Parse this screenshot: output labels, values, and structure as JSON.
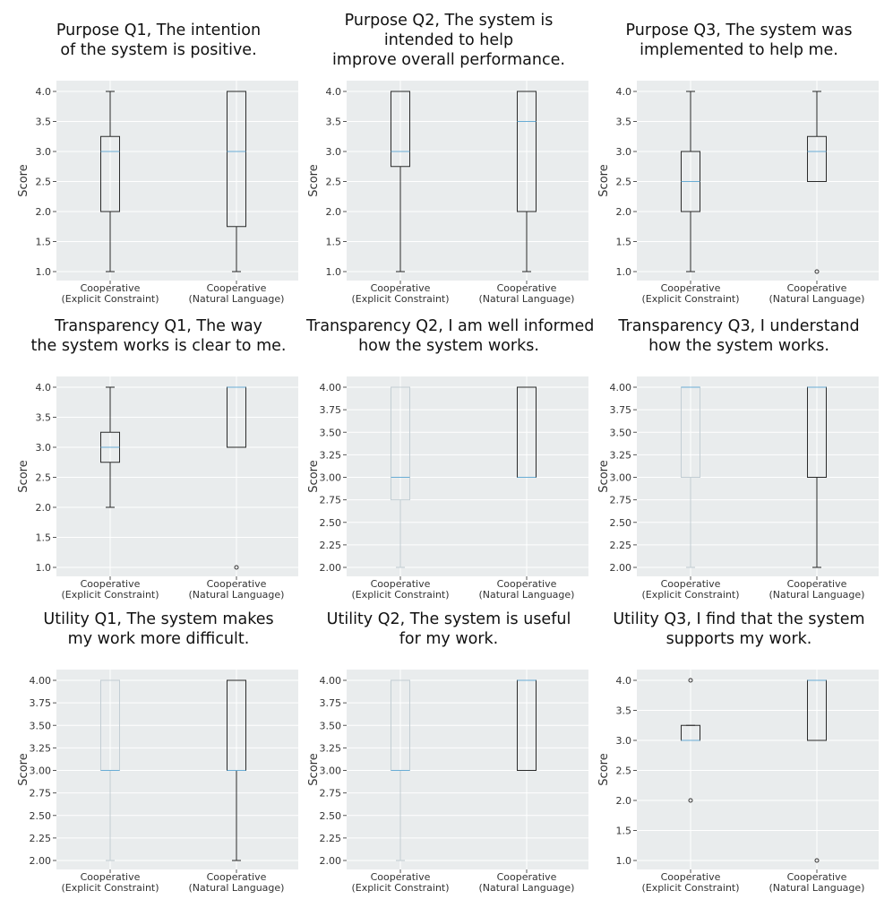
{
  "colors": {
    "background": "#ffffff",
    "plot_bg": "#e9eced",
    "grid": "#ffffff",
    "box": "#2b2b2b",
    "box_light": "#c3ced4",
    "median": "#6aaed6",
    "text": "#333333"
  },
  "chart_data": [
    {
      "type": "box",
      "title": "Purpose Q1, The intention\nof the system is positive.",
      "ylabel": "Score",
      "ylim": [
        1.0,
        4.0
      ],
      "yticks": [
        "1.0",
        "1.5",
        "2.0",
        "2.5",
        "3.0",
        "3.5",
        "4.0"
      ],
      "categories": [
        {
          "line1": "Cooperative",
          "line2": "(Explicit Constraint)"
        },
        {
          "line1": "Cooperative",
          "line2": "(Natural Language)"
        }
      ],
      "boxes": [
        {
          "whislo": 1.0,
          "q1": 2.0,
          "med": 3.0,
          "q3": 3.25,
          "whishi": 4.0,
          "fliers": [],
          "style": "dark"
        },
        {
          "whislo": 1.0,
          "q1": 1.75,
          "med": 3.0,
          "q3": 4.0,
          "whishi": 4.0,
          "fliers": [],
          "style": "dark"
        }
      ]
    },
    {
      "type": "box",
      "title": "Purpose Q2, The system is\nintended to help\nimprove overall performance.",
      "ylabel": "Score",
      "ylim": [
        1.0,
        4.0
      ],
      "yticks": [
        "1.0",
        "1.5",
        "2.0",
        "2.5",
        "3.0",
        "3.5",
        "4.0"
      ],
      "categories": [
        {
          "line1": "Cooperative",
          "line2": "(Explicit Constraint)"
        },
        {
          "line1": "Cooperative",
          "line2": "(Natural Language)"
        }
      ],
      "boxes": [
        {
          "whislo": 1.0,
          "q1": 2.75,
          "med": 3.0,
          "q3": 4.0,
          "whishi": 4.0,
          "fliers": [],
          "style": "dark"
        },
        {
          "whislo": 1.0,
          "q1": 2.0,
          "med": 3.5,
          "q3": 4.0,
          "whishi": 4.0,
          "fliers": [],
          "style": "dark"
        }
      ]
    },
    {
      "type": "box",
      "title": "Purpose Q3, The system was\nimplemented to help me.",
      "ylabel": "Score",
      "ylim": [
        1.0,
        4.0
      ],
      "yticks": [
        "1.0",
        "1.5",
        "2.0",
        "2.5",
        "3.0",
        "3.5",
        "4.0"
      ],
      "categories": [
        {
          "line1": "Cooperative",
          "line2": "(Explicit Constraint)"
        },
        {
          "line1": "Cooperative",
          "line2": "(Natural Language)"
        }
      ],
      "boxes": [
        {
          "whislo": 1.0,
          "q1": 2.0,
          "med": 2.5,
          "q3": 3.0,
          "whishi": 4.0,
          "fliers": [],
          "style": "dark"
        },
        {
          "whislo": 2.5,
          "q1": 2.5,
          "med": 3.0,
          "q3": 3.25,
          "whishi": 4.0,
          "fliers": [
            1.0
          ],
          "style": "dark"
        }
      ]
    },
    {
      "type": "box",
      "title": "Transparency Q1, The way\nthe system works is clear to me.",
      "ylabel": "Score",
      "ylim": [
        1.0,
        4.0
      ],
      "yticks": [
        "1.0",
        "1.5",
        "2.0",
        "2.5",
        "3.0",
        "3.5",
        "4.0"
      ],
      "categories": [
        {
          "line1": "Cooperative",
          "line2": "(Explicit Constraint)"
        },
        {
          "line1": "Cooperative",
          "line2": "(Natural Language)"
        }
      ],
      "boxes": [
        {
          "whislo": 2.0,
          "q1": 2.75,
          "med": 3.0,
          "q3": 3.25,
          "whishi": 4.0,
          "fliers": [],
          "style": "dark"
        },
        {
          "whislo": 3.0,
          "q1": 3.0,
          "med": 4.0,
          "q3": 4.0,
          "whishi": 4.0,
          "fliers": [
            1.0
          ],
          "style": "dark"
        }
      ]
    },
    {
      "type": "box",
      "title": "Transparency Q2, I am well informed\nhow the system works.",
      "ylabel": "Score",
      "ylim": [
        2.0,
        4.0
      ],
      "yticks": [
        "2.00",
        "2.25",
        "2.50",
        "2.75",
        "3.00",
        "3.25",
        "3.50",
        "3.75",
        "4.00"
      ],
      "categories": [
        {
          "line1": "Cooperative",
          "line2": "(Explicit Constraint)"
        },
        {
          "line1": "Cooperative",
          "line2": "(Natural Language)"
        }
      ],
      "boxes": [
        {
          "whislo": 2.0,
          "q1": 2.75,
          "med": 3.0,
          "q3": 4.0,
          "whishi": 4.0,
          "fliers": [],
          "style": "light"
        },
        {
          "whislo": 3.0,
          "q1": 3.0,
          "med": 3.0,
          "q3": 4.0,
          "whishi": 4.0,
          "fliers": [],
          "style": "dark"
        }
      ]
    },
    {
      "type": "box",
      "title": "Transparency Q3, I understand\nhow the system works.",
      "ylabel": "Score",
      "ylim": [
        2.0,
        4.0
      ],
      "yticks": [
        "2.00",
        "2.25",
        "2.50",
        "2.75",
        "3.00",
        "3.25",
        "3.50",
        "3.75",
        "4.00"
      ],
      "categories": [
        {
          "line1": "Cooperative",
          "line2": "(Explicit Constraint)"
        },
        {
          "line1": "Cooperative",
          "line2": "(Natural Language)"
        }
      ],
      "boxes": [
        {
          "whislo": 2.0,
          "q1": 3.0,
          "med": 4.0,
          "q3": 4.0,
          "whishi": 4.0,
          "fliers": [],
          "style": "light"
        },
        {
          "whislo": 2.0,
          "q1": 3.0,
          "med": 4.0,
          "q3": 4.0,
          "whishi": 4.0,
          "fliers": [],
          "style": "dark"
        }
      ]
    },
    {
      "type": "box",
      "title": "Utility Q1, The system makes\nmy work more difficult.",
      "ylabel": "Score",
      "ylim": [
        2.0,
        4.0
      ],
      "yticks": [
        "2.00",
        "2.25",
        "2.50",
        "2.75",
        "3.00",
        "3.25",
        "3.50",
        "3.75",
        "4.00"
      ],
      "categories": [
        {
          "line1": "Cooperative",
          "line2": "(Explicit Constraint)"
        },
        {
          "line1": "Cooperative",
          "line2": "(Natural Language)"
        }
      ],
      "boxes": [
        {
          "whislo": 2.0,
          "q1": 3.0,
          "med": 3.0,
          "q3": 4.0,
          "whishi": 4.0,
          "fliers": [],
          "style": "light"
        },
        {
          "whislo": 2.0,
          "q1": 3.0,
          "med": 3.0,
          "q3": 4.0,
          "whishi": 4.0,
          "fliers": [],
          "style": "dark"
        }
      ]
    },
    {
      "type": "box",
      "title": "Utility Q2, The system is useful\nfor my work.",
      "ylabel": "Score",
      "ylim": [
        2.0,
        4.0
      ],
      "yticks": [
        "2.00",
        "2.25",
        "2.50",
        "2.75",
        "3.00",
        "3.25",
        "3.50",
        "3.75",
        "4.00"
      ],
      "categories": [
        {
          "line1": "Cooperative",
          "line2": "(Explicit Constraint)"
        },
        {
          "line1": "Cooperative",
          "line2": "(Natural Language)"
        }
      ],
      "boxes": [
        {
          "whislo": 2.0,
          "q1": 3.0,
          "med": 3.0,
          "q3": 4.0,
          "whishi": 4.0,
          "fliers": [],
          "style": "light"
        },
        {
          "whislo": 3.0,
          "q1": 3.0,
          "med": 4.0,
          "q3": 4.0,
          "whishi": 4.0,
          "fliers": [],
          "style": "dark"
        }
      ]
    },
    {
      "type": "box",
      "title": "Utility Q3, I find that the system\nsupports my work.",
      "ylabel": "Score",
      "ylim": [
        1.0,
        4.0
      ],
      "yticks": [
        "1.0",
        "1.5",
        "2.0",
        "2.5",
        "3.0",
        "3.5",
        "4.0"
      ],
      "categories": [
        {
          "line1": "Cooperative",
          "line2": "(Explicit Constraint)"
        },
        {
          "line1": "Cooperative",
          "line2": "(Natural Language)"
        }
      ],
      "boxes": [
        {
          "whislo": 3.0,
          "q1": 3.0,
          "med": 3.0,
          "q3": 3.25,
          "whishi": 3.25,
          "fliers": [
            2.0,
            4.0
          ],
          "style": "dark"
        },
        {
          "whislo": 3.0,
          "q1": 3.0,
          "med": 4.0,
          "q3": 4.0,
          "whishi": 4.0,
          "fliers": [
            1.0
          ],
          "style": "dark"
        }
      ]
    }
  ]
}
